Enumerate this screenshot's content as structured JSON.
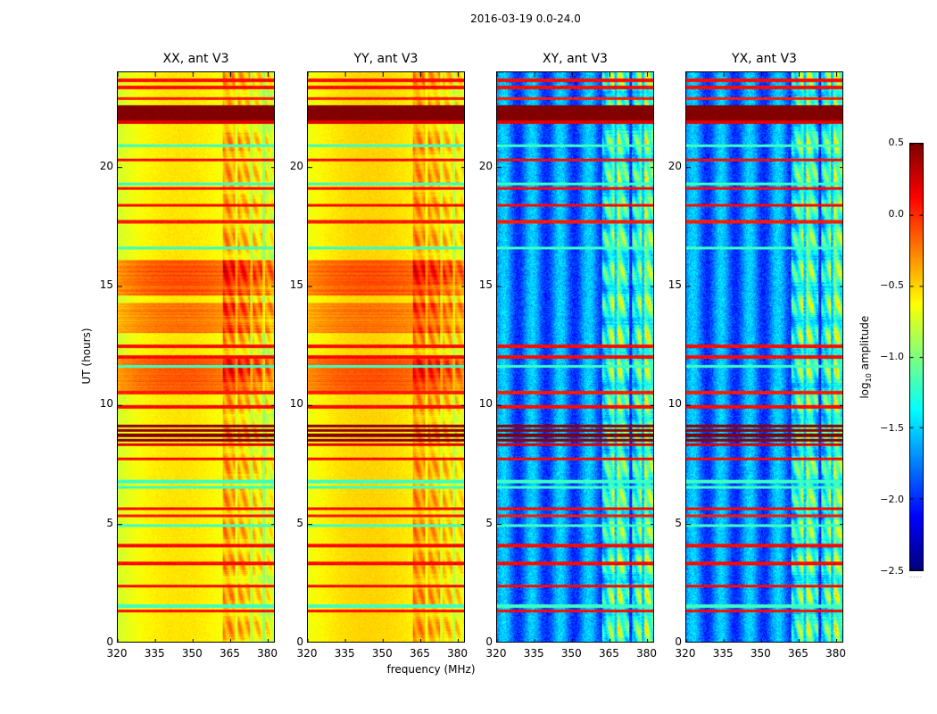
{
  "chart_data": {
    "type": "heatmap",
    "title": "2016-03-19 0.0-24.0",
    "xlabel": "frequency (MHz)",
    "ylabel": "UT (hours)",
    "xlim": [
      320,
      383
    ],
    "ylim": [
      0,
      24
    ],
    "x_ticks": [
      "320",
      "335",
      "350",
      "365",
      "380"
    ],
    "x_tick_values": [
      320,
      335,
      350,
      365,
      380
    ],
    "y_ticks": [
      "0",
      "5",
      "10",
      "15",
      "20"
    ],
    "y_tick_values": [
      0,
      5,
      10,
      15,
      20
    ],
    "colorbar": {
      "label_main": "log",
      "label_sub": "10",
      "label_rest": " amplitude",
      "range": [
        -2.5,
        0.5
      ],
      "ticks": [
        "0.5",
        "0.0",
        "−0.5",
        "−1.0",
        "−1.5",
        "−2.0",
        "−2.5"
      ],
      "tick_values": [
        0.5,
        0.0,
        -0.5,
        -1.0,
        -1.5,
        -2.0,
        -2.5
      ],
      "colormap": "jet",
      "footer": "......"
    },
    "bright_freq_bands_mhz": [
      [
        362.5,
        367.5
      ],
      [
        368.5,
        373.5
      ],
      [
        374.5,
        378.5
      ],
      [
        379.3,
        383
      ]
    ],
    "panels": [
      {
        "title": "XX, ant V3",
        "base_level": -0.55,
        "edge_drop": 0.35,
        "band_boost": 0.55,
        "stripes": 0.0,
        "extra_bands": [
          {
            "t0": 14.6,
            "t1": 16.1,
            "level": -0.1
          },
          {
            "t0": 10.5,
            "t1": 12.0,
            "level": -0.12
          },
          {
            "t0": 13.0,
            "t1": 14.3,
            "level": -0.2
          }
        ]
      },
      {
        "title": "YY, ant V3",
        "base_level": -0.5,
        "edge_drop": 0.3,
        "band_boost": 0.5,
        "stripes": 0.0,
        "extra_bands": [
          {
            "t0": 14.6,
            "t1": 16.1,
            "level": -0.1
          },
          {
            "t0": 10.5,
            "t1": 12.0,
            "level": -0.1
          },
          {
            "t0": 13.0,
            "t1": 14.3,
            "level": -0.2
          }
        ]
      },
      {
        "title": "XY, ant V3",
        "base_level": -1.75,
        "edge_drop": 0.0,
        "band_boost": 1.0,
        "stripes": 0.25,
        "extra_bands": []
      },
      {
        "title": "YX, ant V3",
        "base_level": -1.75,
        "edge_drop": 0.0,
        "band_boost": 1.0,
        "stripes": 0.25,
        "extra_bands": []
      }
    ],
    "horizontal_lines_ut": [
      {
        "t": 23.66,
        "level": 0.1
      },
      {
        "t": 23.36,
        "level": 0.1
      },
      {
        "t": 22.9,
        "level": 0.05
      },
      {
        "t": 22.25,
        "level": 0.5,
        "width": 0.35
      },
      {
        "t": 21.9,
        "level": 0.2
      },
      {
        "t": 20.3,
        "level": 0.1
      },
      {
        "t": 20.9,
        "level": -1.2
      },
      {
        "t": 19.3,
        "level": -1.2
      },
      {
        "t": 19.1,
        "level": 0.1
      },
      {
        "t": 18.4,
        "level": 0.1
      },
      {
        "t": 17.7,
        "level": 0.05
      },
      {
        "t": 16.6,
        "level": -1.2
      },
      {
        "t": 12.45,
        "level": 0.1
      },
      {
        "t": 12.0,
        "level": 0.1
      },
      {
        "t": 11.6,
        "level": -1.2
      },
      {
        "t": 10.5,
        "level": 0.05
      },
      {
        "t": 9.9,
        "level": 0.1
      },
      {
        "t": 9.1,
        "level": 0.45
      },
      {
        "t": 8.9,
        "level": 0.45
      },
      {
        "t": 8.7,
        "level": 0.5
      },
      {
        "t": 8.5,
        "level": 0.45
      },
      {
        "t": 8.3,
        "level": 0.2
      },
      {
        "t": 7.7,
        "level": 0.1
      },
      {
        "t": 6.75,
        "level": -1.2
      },
      {
        "t": 6.5,
        "level": -1.2
      },
      {
        "t": 5.6,
        "level": 0.1
      },
      {
        "t": 5.3,
        "level": 0.05
      },
      {
        "t": 4.9,
        "level": -1.2
      },
      {
        "t": 4.05,
        "level": 0.1
      },
      {
        "t": 3.3,
        "level": 0.1
      },
      {
        "t": 2.35,
        "level": 0.1
      },
      {
        "t": 1.5,
        "level": -1.2
      },
      {
        "t": 1.3,
        "level": 0.1
      }
    ]
  }
}
